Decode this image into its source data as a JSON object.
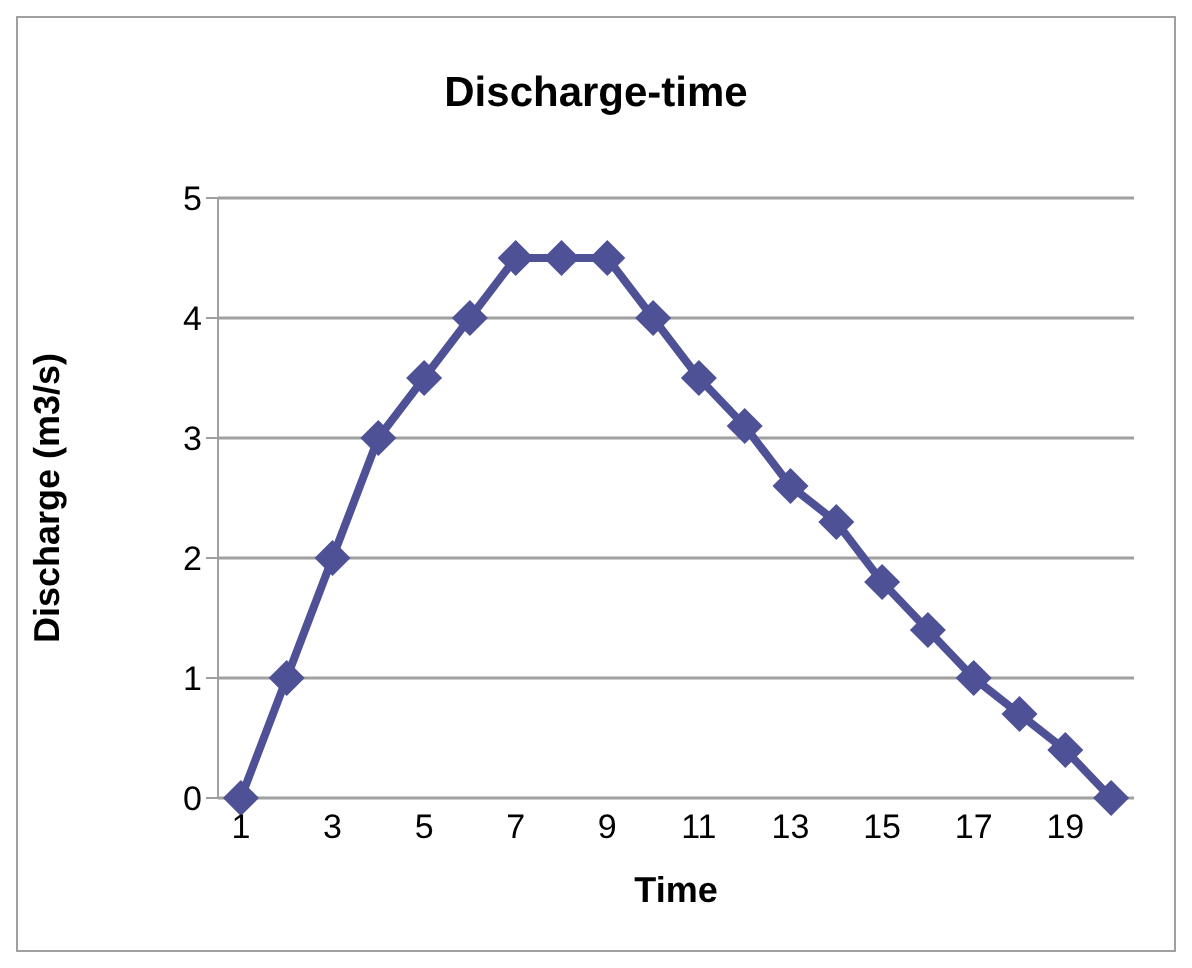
{
  "chart_data": {
    "type": "line",
    "title": "Discharge-time",
    "xlabel": "Time",
    "ylabel": "Discharge (m3/s)",
    "x": [
      1,
      2,
      3,
      4,
      5,
      6,
      7,
      8,
      9,
      10,
      11,
      12,
      13,
      14,
      15,
      16,
      17,
      18,
      19,
      20
    ],
    "series": [
      {
        "color": "#4f5196",
        "values": [
          0,
          1,
          2,
          3,
          3.5,
          4,
          4.5,
          4.5,
          4.5,
          4,
          3.5,
          3.1,
          2.6,
          2.3,
          1.8,
          1.4,
          1,
          0.7,
          0.4,
          0
        ]
      }
    ],
    "xlim": [
      0.5,
      20.5
    ],
    "xticks": [
      1,
      3,
      5,
      7,
      9,
      11,
      13,
      15,
      17,
      19
    ],
    "ylim": [
      0,
      5
    ],
    "yticks": [
      0,
      1,
      2,
      3,
      4,
      5
    ],
    "grid": "y",
    "legend": false,
    "marker": "diamond",
    "line_style": "solid"
  }
}
